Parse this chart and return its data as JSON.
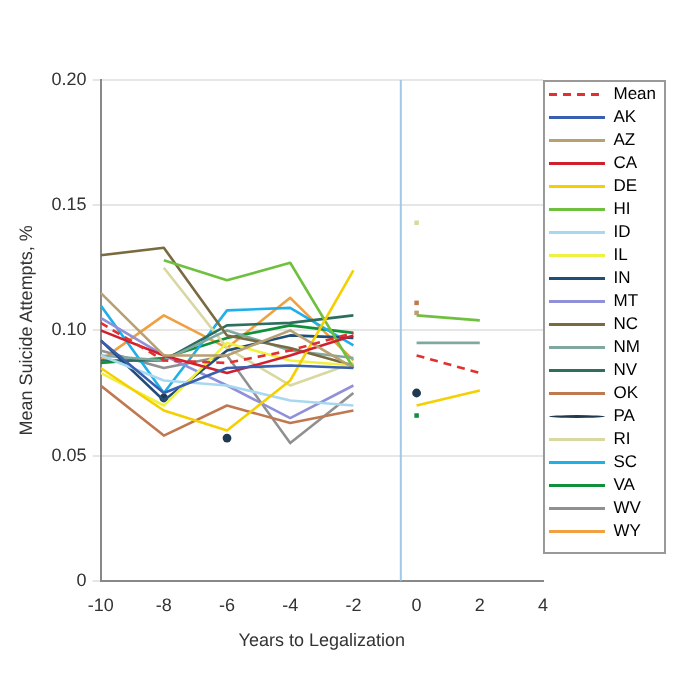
{
  "chart_data": {
    "type": "line",
    "xlabel": "Years to Legalization",
    "ylabel": "Mean Suicide Attempts, %",
    "x": [
      -10,
      -8,
      -6,
      -4,
      -2,
      -1,
      0,
      2
    ],
    "xlim": [
      -10,
      4
    ],
    "xticks": [
      -10,
      -8,
      -6,
      -4,
      -2,
      0,
      2,
      4
    ],
    "ylim": [
      0,
      0.2
    ],
    "yticks": [
      0,
      0.05,
      {
        "value": 0.1,
        "label": "0.10"
      },
      0.15,
      {
        "value": 0.2,
        "label": "0.20"
      }
    ],
    "grid": "y",
    "legend": "right",
    "marker": "none",
    "line_style": "solid",
    "ref_lines": [
      {
        "axis": "x",
        "value": -0.5,
        "color": "#a0c8e8"
      }
    ],
    "series": [
      {
        "name": "Mean",
        "color": "#e03030",
        "line_style": "dashed",
        "values": [
          0.103,
          0.088,
          0.087,
          0.092,
          0.099,
          null,
          0.09,
          0.083
        ]
      },
      {
        "name": "AK",
        "color": "#3a5fb0",
        "values": [
          0.096,
          0.075,
          0.085,
          0.086,
          0.085,
          null,
          null,
          null
        ]
      },
      {
        "name": "AZ",
        "color": "#b8a070",
        "values": [
          0.115,
          0.09,
          0.09,
          0.1,
          0.085,
          null,
          0.107,
          null
        ]
      },
      {
        "name": "CA",
        "color": "#d02030",
        "values": [
          0.1,
          0.09,
          0.083,
          0.09,
          0.098,
          null,
          null,
          null
        ]
      },
      {
        "name": "DE",
        "color": "#f5d000",
        "values": [
          0.085,
          0.068,
          0.06,
          0.08,
          0.124,
          null,
          0.07,
          0.076
        ]
      },
      {
        "name": "HI",
        "color": "#70c040",
        "values": [
          null,
          0.128,
          0.12,
          0.127,
          0.085,
          null,
          0.106,
          0.104
        ]
      },
      {
        "name": "ID",
        "color": "#a8d8f0",
        "values": [
          0.09,
          0.08,
          0.078,
          0.072,
          0.07,
          null,
          null,
          null
        ]
      },
      {
        "name": "IL",
        "color": "#f0f040",
        "values": [
          0.083,
          0.07,
          0.095,
          0.088,
          0.086,
          null,
          null,
          null
        ]
      },
      {
        "name": "IN",
        "color": "#1f4e79",
        "values": [
          0.096,
          0.072,
          0.092,
          0.098,
          0.097,
          null,
          null,
          null
        ]
      },
      {
        "name": "MT",
        "color": "#9090d8",
        "values": [
          0.105,
          0.09,
          0.078,
          0.065,
          0.078,
          null,
          null,
          null
        ]
      },
      {
        "name": "NC",
        "color": "#7a6a40",
        "values": [
          0.13,
          0.133,
          0.098,
          0.093,
          0.086,
          null,
          null,
          null
        ]
      },
      {
        "name": "NM",
        "color": "#80a8a0",
        "values": [
          0.09,
          0.088,
          0.1,
          0.092,
          0.089,
          null,
          0.095,
          0.095
        ]
      },
      {
        "name": "NV",
        "color": "#2e6e5e",
        "values": [
          0.088,
          0.088,
          0.102,
          0.103,
          0.106,
          null,
          null,
          null
        ]
      },
      {
        "name": "OK",
        "color": "#c07850",
        "values": [
          0.078,
          0.058,
          0.07,
          0.063,
          0.068,
          null,
          0.111,
          null
        ]
      },
      {
        "name": "PA",
        "color": "#1f3a50",
        "type": "scatter",
        "marker": "circle",
        "values": [
          null,
          0.073,
          0.057,
          null,
          null,
          null,
          0.075,
          null
        ]
      },
      {
        "name": "RI",
        "color": "#d8d8a0",
        "values": [
          null,
          0.125,
          0.093,
          0.078,
          0.087,
          null,
          0.143,
          null
        ]
      },
      {
        "name": "SC",
        "color": "#20b0e8",
        "values": [
          0.11,
          0.075,
          0.108,
          0.109,
          0.094,
          null,
          null,
          null
        ]
      },
      {
        "name": "VA",
        "color": "#10903a",
        "values": [
          0.087,
          0.089,
          0.097,
          0.102,
          0.099,
          null,
          0.066,
          null
        ]
      },
      {
        "name": "WV",
        "color": "#909090",
        "values": [
          0.092,
          0.085,
          0.09,
          0.055,
          0.075,
          null,
          null,
          null
        ]
      },
      {
        "name": "WY",
        "color": "#f0a040",
        "values": [
          0.088,
          0.106,
          0.093,
          0.113,
          0.088,
          null,
          null,
          null
        ]
      }
    ]
  }
}
